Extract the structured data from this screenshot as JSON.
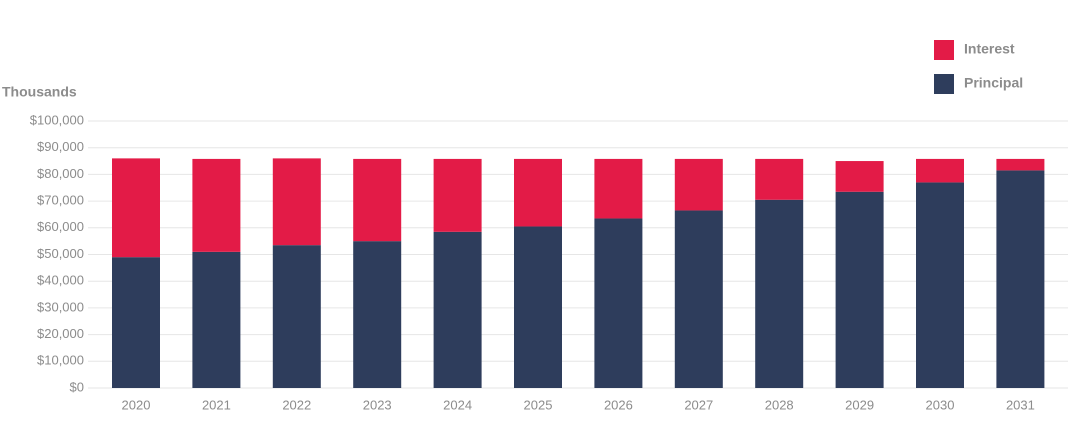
{
  "chart_data": {
    "type": "stacked_bar",
    "y_label": "Thousands",
    "categories": [
      "2020",
      "2021",
      "2022",
      "2023",
      "2024",
      "2025",
      "2026",
      "2027",
      "2028",
      "2029",
      "2030",
      "2031"
    ],
    "series": [
      {
        "name": "Principal",
        "color": "#2e3d5c",
        "values": [
          49000,
          51000,
          53500,
          55000,
          58500,
          60500,
          63500,
          66500,
          70500,
          73500,
          77000,
          81500
        ]
      },
      {
        "name": "Interest",
        "color": "#e31b47",
        "values": [
          37000,
          34800,
          32500,
          30800,
          27300,
          25300,
          22300,
          19300,
          15300,
          11500,
          8800,
          4300
        ]
      }
    ],
    "ylim": [
      0,
      100000
    ],
    "yticks": [
      {
        "value": 0,
        "label": "$0"
      },
      {
        "value": 10000,
        "label": "$10,000"
      },
      {
        "value": 20000,
        "label": "$20,000"
      },
      {
        "value": 30000,
        "label": "$30,000"
      },
      {
        "value": 40000,
        "label": "$40,000"
      },
      {
        "value": 50000,
        "label": "$50,000"
      },
      {
        "value": 60000,
        "label": "$60,000"
      },
      {
        "value": 70000,
        "label": "$70,000"
      },
      {
        "value": 80000,
        "label": "$80,000"
      },
      {
        "value": 90000,
        "label": "$90,000"
      },
      {
        "value": 100000,
        "label": "$100,000"
      }
    ],
    "grid": true,
    "legend": "top-right"
  }
}
